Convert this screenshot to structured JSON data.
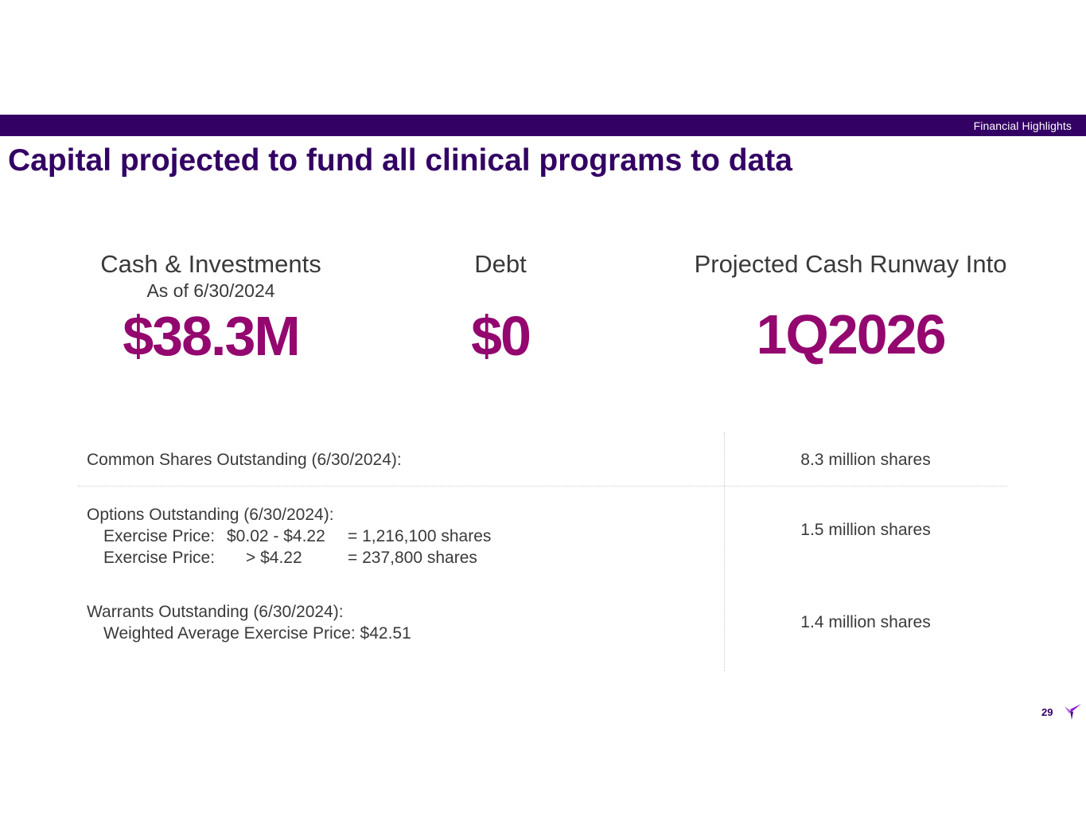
{
  "header": {
    "section": "Financial Highlights",
    "title": "Capital projected to fund all clinical programs to data"
  },
  "metrics": {
    "cash": {
      "heading": "Cash & Investments",
      "sub": "As of 6/30/2024",
      "value": "$38.3M"
    },
    "debt": {
      "heading": "Debt",
      "value": "$0"
    },
    "runway": {
      "heading": "Projected Cash Runway Into",
      "value": "1Q2026"
    }
  },
  "share_table": {
    "common": {
      "label": "Common Shares Outstanding (6/30/2024):",
      "value": "8.3 million shares"
    },
    "options": {
      "label": "Options Outstanding (6/30/2024):",
      "lines": [
        {
          "label": "Exercise Price:",
          "range": "$0.02 - $4.22",
          "count": "= 1,216,100  shares"
        },
        {
          "label": "Exercise Price:",
          "range": "> $4.22",
          "count": "= 237,800  shares"
        }
      ],
      "value": "1.5 million shares"
    },
    "warrants": {
      "label": "Warrants Outstanding (6/30/2024):",
      "detail": "Weighted Average Exercise Price: $42.51",
      "value": "1.4 million shares"
    }
  },
  "footer": {
    "page_number": "29",
    "logo_icon": "bird-logo-icon"
  },
  "colors": {
    "brand_purple": "#330063",
    "accent_magenta": "#93076f",
    "text_gray": "#3a3a3a"
  }
}
